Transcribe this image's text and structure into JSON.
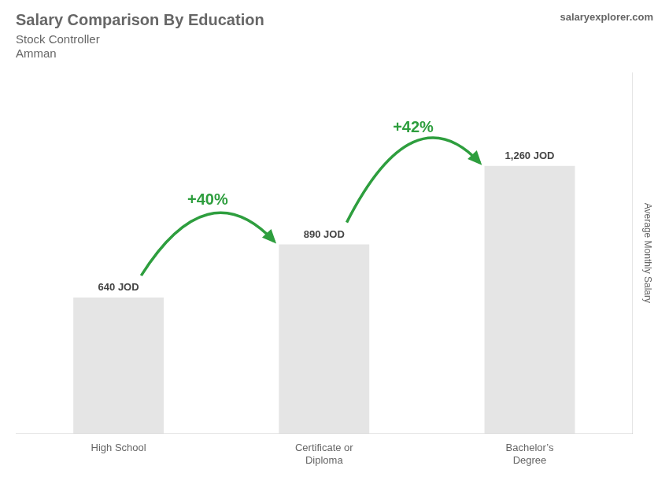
{
  "chart_data": {
    "type": "bar",
    "title": "Salary Comparison By Education",
    "subtitle": [
      "Stock Controller",
      "Amman"
    ],
    "ylabel": "Average Monthly Salary",
    "categories": [
      "High School",
      "Certificate or\nDiploma",
      "Bachelor’s\nDegree"
    ],
    "values": [
      640,
      890,
      1260
    ],
    "value_labels": [
      "640 JOD",
      "890 JOD",
      "1,260 JOD"
    ],
    "data_labels": true,
    "ylim": [
      0,
      1700
    ],
    "grid": false,
    "tick_labels": "x",
    "annotations": [
      {
        "text": "+40%",
        "from": "High School",
        "to": "Certificate or\nDiploma"
      },
      {
        "text": "+42%",
        "from": "Certificate or\nDiploma",
        "to": "Bachelor’s\nDegree"
      },
      {
        "text": "salaryexplorer.com"
      }
    ]
  }
}
